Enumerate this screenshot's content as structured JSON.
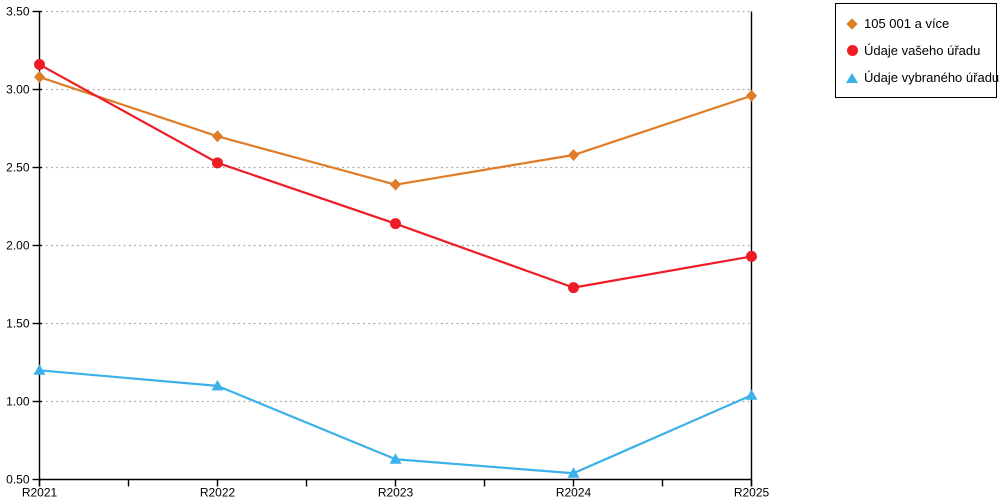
{
  "chart_data": {
    "type": "line",
    "title": "",
    "xlabel": "",
    "ylabel": "",
    "categories": [
      "R2021",
      "R2022",
      "R2023",
      "R2024",
      "R2025"
    ],
    "series": [
      {
        "name": "105 001 a více",
        "marker": "diamond",
        "color": "#DE7C28",
        "values": [
          3.08,
          2.7,
          2.39,
          2.58,
          2.96
        ]
      },
      {
        "name": "Údaje vašeho úřadu",
        "marker": "circle",
        "color": "#EE1C25",
        "values": [
          3.16,
          2.53,
          2.14,
          1.73,
          1.93
        ]
      },
      {
        "name": "Údaje vybraného úřadu",
        "marker": "triangle",
        "color": "#3AB1E8",
        "values": [
          1.2,
          1.1,
          0.63,
          0.54,
          1.04
        ]
      }
    ],
    "ylim": [
      0.5,
      3.5
    ],
    "ytick_step": 0.5,
    "ytick_labels": [
      "3.50",
      "3.00",
      "2.50",
      "2.00",
      "1.50",
      "1.00",
      "0.50"
    ],
    "grid": "horizontal-dotted",
    "legend_position": "top-right"
  },
  "style": {
    "axis_color": "#000000",
    "grid_color": "#AEAEAE",
    "text_color": "#000000",
    "background": "#FFFFFF",
    "legend_border": "#000000"
  }
}
